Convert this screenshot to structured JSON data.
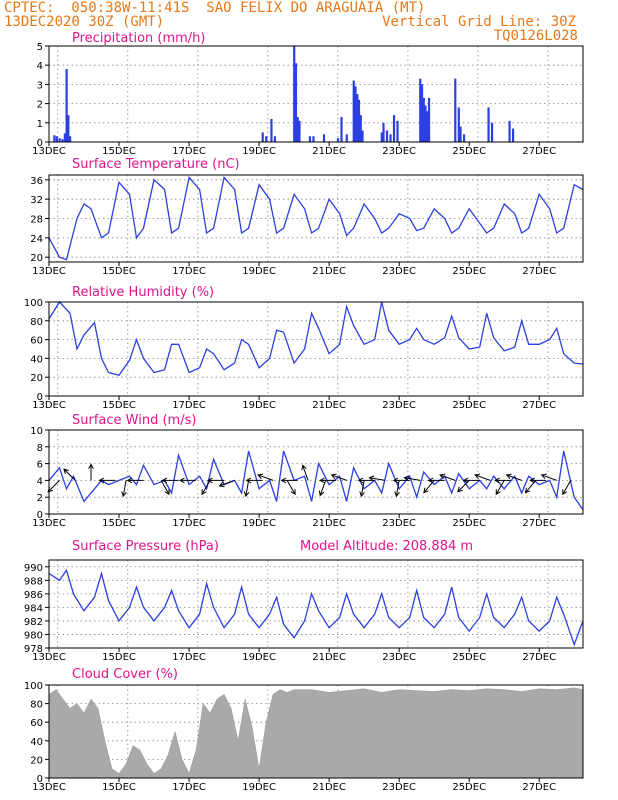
{
  "header": {
    "line1_left": "CPTEC:  050:38W-11:41S  SAO FELIX DO ARAGUAIA (MT)",
    "line2_left": "13DEC2020 30Z (GMT)",
    "line2_right": "Vertical Grid Line: 30Z",
    "line3_right": "TQ0126L028"
  },
  "colors": {
    "header": "#e87818",
    "title": "#e0148c",
    "series": "#2c3fe0",
    "cloud": "#a9a9a9"
  },
  "x_ticks": [
    "13DEC",
    "15DEC",
    "17DEC",
    "19DEC",
    "21DEC",
    "23DEC",
    "25DEC",
    "27DEC"
  ],
  "chart_data": [
    {
      "type": "bar",
      "title": "Precipitation (mm/h)",
      "ylim": [
        0,
        5
      ],
      "yticks": [
        0,
        1,
        2,
        3,
        4,
        5
      ],
      "x_range_days": [
        13,
        28.25
      ],
      "x": [
        13.15,
        13.22,
        13.3,
        13.38,
        13.45,
        13.5,
        13.55,
        13.6,
        19.1,
        19.2,
        19.35,
        19.45,
        20.0,
        20.05,
        20.1,
        20.15,
        20.45,
        20.55,
        20.85,
        21.25,
        21.35,
        21.5,
        21.7,
        21.75,
        21.8,
        21.85,
        21.9,
        21.95,
        22.5,
        22.55,
        22.65,
        22.75,
        22.85,
        22.95,
        23.6,
        23.65,
        23.7,
        23.75,
        23.8,
        23.85,
        24.6,
        24.7,
        24.75,
        24.85,
        25.55,
        25.65,
        26.15,
        26.25
      ],
      "values": [
        0.35,
        0.3,
        0.2,
        0.15,
        0.45,
        3.8,
        1.4,
        0.3,
        0.5,
        0.3,
        1.2,
        0.3,
        5.0,
        4.1,
        1.3,
        1.1,
        0.3,
        0.3,
        0.4,
        0.2,
        1.3,
        0.4,
        3.2,
        2.9,
        2.5,
        2.2,
        1.4,
        0.6,
        0.5,
        1.0,
        0.6,
        0.4,
        1.4,
        1.1,
        3.3,
        3.0,
        2.3,
        1.9,
        1.6,
        2.3,
        3.3,
        1.8,
        0.8,
        0.4,
        1.8,
        1.0,
        1.1,
        0.7
      ]
    },
    {
      "type": "line",
      "title": "Surface Temperature (nC)",
      "ylim": [
        19,
        37
      ],
      "yticks": [
        20,
        24,
        28,
        32,
        36
      ],
      "x_range_days": [
        13,
        28.25
      ],
      "x": [
        13.0,
        13.3,
        13.5,
        13.8,
        14.0,
        14.2,
        14.5,
        14.7,
        15.0,
        15.3,
        15.5,
        15.7,
        16.0,
        16.3,
        16.5,
        16.7,
        17.0,
        17.3,
        17.5,
        17.7,
        18.0,
        18.3,
        18.5,
        18.7,
        19.0,
        19.3,
        19.5,
        19.7,
        20.0,
        20.3,
        20.5,
        20.7,
        21.0,
        21.3,
        21.5,
        21.7,
        22.0,
        22.3,
        22.5,
        22.7,
        23.0,
        23.3,
        23.5,
        23.7,
        24.0,
        24.3,
        24.5,
        24.7,
        25.0,
        25.3,
        25.5,
        25.7,
        26.0,
        26.3,
        26.5,
        26.7,
        27.0,
        27.3,
        27.5,
        27.7,
        28.0,
        28.25
      ],
      "values": [
        24,
        20,
        19.5,
        28,
        31,
        30,
        24,
        25,
        35.5,
        33,
        24,
        26,
        36,
        34,
        25,
        26,
        36.5,
        34,
        25,
        26,
        36.5,
        34,
        25,
        26,
        35,
        32,
        25,
        26,
        33,
        30,
        25,
        26,
        32,
        29,
        24.5,
        26,
        31,
        28,
        25,
        26,
        29,
        28,
        25.5,
        26,
        30,
        28,
        25,
        26,
        30,
        27,
        25,
        26,
        31,
        29,
        25,
        26,
        33,
        30,
        25,
        26,
        35,
        34
      ]
    },
    {
      "type": "line",
      "title": "Relative Humidity (%)",
      "ylim": [
        0,
        100
      ],
      "yticks": [
        0,
        20,
        40,
        60,
        80,
        100
      ],
      "x_range_days": [
        13,
        28.25
      ],
      "x": [
        13.0,
        13.3,
        13.6,
        13.8,
        14.0,
        14.3,
        14.5,
        14.7,
        15.0,
        15.3,
        15.5,
        15.7,
        16.0,
        16.3,
        16.5,
        16.7,
        17.0,
        17.3,
        17.5,
        17.7,
        18.0,
        18.3,
        18.5,
        18.7,
        19.0,
        19.3,
        19.5,
        19.7,
        20.0,
        20.3,
        20.5,
        20.7,
        21.0,
        21.3,
        21.5,
        21.7,
        22.0,
        22.3,
        22.5,
        22.7,
        23.0,
        23.3,
        23.5,
        23.7,
        24.0,
        24.3,
        24.5,
        24.7,
        25.0,
        25.3,
        25.5,
        25.7,
        26.0,
        26.3,
        26.5,
        26.7,
        27.0,
        27.3,
        27.5,
        27.7,
        28.0,
        28.25
      ],
      "values": [
        82,
        100,
        88,
        50,
        65,
        78,
        40,
        25,
        22,
        38,
        60,
        40,
        25,
        28,
        55,
        55,
        25,
        30,
        50,
        45,
        28,
        35,
        60,
        55,
        30,
        40,
        70,
        68,
        35,
        50,
        88,
        72,
        45,
        55,
        95,
        75,
        55,
        60,
        100,
        70,
        55,
        60,
        72,
        60,
        55,
        62,
        85,
        62,
        50,
        52,
        88,
        62,
        48,
        52,
        80,
        55,
        55,
        60,
        72,
        45,
        35,
        34
      ]
    },
    {
      "type": "line",
      "title": "Surface Wind (m/s)",
      "ylim": [
        0,
        10
      ],
      "yticks": [
        0,
        2,
        4,
        6,
        8,
        10
      ],
      "x_range_days": [
        13,
        28.25
      ],
      "x": [
        13.0,
        13.3,
        13.5,
        13.7,
        14.0,
        14.3,
        14.5,
        14.7,
        15.0,
        15.3,
        15.5,
        15.7,
        16.0,
        16.3,
        16.5,
        16.7,
        17.0,
        17.3,
        17.5,
        17.7,
        18.0,
        18.3,
        18.5,
        18.7,
        19.0,
        19.3,
        19.5,
        19.7,
        20.0,
        20.3,
        20.5,
        20.7,
        21.0,
        21.3,
        21.5,
        21.7,
        22.0,
        22.3,
        22.5,
        22.7,
        23.0,
        23.3,
        23.5,
        23.7,
        24.0,
        24.3,
        24.5,
        24.7,
        25.0,
        25.3,
        25.5,
        25.7,
        26.0,
        26.3,
        26.5,
        26.7,
        27.0,
        27.3,
        27.5,
        27.7,
        28.0,
        28.25
      ],
      "values": [
        4,
        5.5,
        3,
        4.5,
        1.5,
        3,
        4,
        3.5,
        4,
        4.5,
        3.5,
        5.8,
        3.5,
        4,
        2.5,
        7,
        3.5,
        4.5,
        3,
        6.5,
        3.5,
        4,
        2.5,
        7.5,
        3,
        4,
        1.5,
        7.5,
        4,
        4.5,
        1.5,
        6,
        3.5,
        4.5,
        1.5,
        5.5,
        3,
        4,
        2.5,
        6,
        3,
        4.5,
        2,
        5,
        3.5,
        4.5,
        2.5,
        4.8,
        3,
        4,
        3,
        4.5,
        3,
        4.5,
        2.5,
        4.5,
        3.5,
        4,
        2,
        7.5,
        2,
        0.5
      ],
      "arrows": [
        {
          "x": 13.3,
          "deg": 135
        },
        {
          "x": 13.75,
          "deg": 225
        },
        {
          "x": 14.2,
          "deg": 270
        },
        {
          "x": 14.9,
          "deg": 180
        },
        {
          "x": 15.2,
          "deg": 100
        },
        {
          "x": 15.7,
          "deg": 180
        },
        {
          "x": 16.2,
          "deg": 60
        },
        {
          "x": 16.7,
          "deg": 180
        },
        {
          "x": 17.2,
          "deg": 180
        },
        {
          "x": 17.6,
          "deg": 120
        },
        {
          "x": 18.0,
          "deg": 180
        },
        {
          "x": 18.3,
          "deg": 160
        },
        {
          "x": 18.7,
          "deg": 100
        },
        {
          "x": 19.1,
          "deg": 180
        },
        {
          "x": 19.4,
          "deg": 200
        },
        {
          "x": 19.8,
          "deg": 60
        },
        {
          "x": 20.1,
          "deg": 180
        },
        {
          "x": 20.4,
          "deg": 250
        },
        {
          "x": 20.9,
          "deg": 110
        },
        {
          "x": 21.2,
          "deg": 180
        },
        {
          "x": 21.5,
          "deg": 200
        },
        {
          "x": 22.0,
          "deg": 100
        },
        {
          "x": 22.3,
          "deg": 180
        },
        {
          "x": 22.6,
          "deg": 190
        },
        {
          "x": 23.0,
          "deg": 100
        },
        {
          "x": 23.3,
          "deg": 180
        },
        {
          "x": 23.6,
          "deg": 190
        },
        {
          "x": 24.0,
          "deg": 130
        },
        {
          "x": 24.3,
          "deg": 180
        },
        {
          "x": 24.6,
          "deg": 200
        },
        {
          "x": 25.0,
          "deg": 135
        },
        {
          "x": 25.3,
          "deg": 180
        },
        {
          "x": 25.6,
          "deg": 200
        },
        {
          "x": 26.0,
          "deg": 120
        },
        {
          "x": 26.2,
          "deg": 180
        },
        {
          "x": 26.5,
          "deg": 200
        },
        {
          "x": 26.9,
          "deg": 130
        },
        {
          "x": 27.2,
          "deg": 180
        },
        {
          "x": 27.5,
          "deg": 200
        },
        {
          "x": 27.9,
          "deg": 120
        }
      ]
    },
    {
      "type": "line",
      "title": "Surface Pressure (hPa)",
      "annotation": "Model Altitude: 208.884 m",
      "ylim": [
        978,
        991
      ],
      "yticks": [
        978,
        980,
        982,
        984,
        986,
        988,
        990
      ],
      "x_range_days": [
        13,
        28.25
      ],
      "x": [
        13.0,
        13.3,
        13.5,
        13.7,
        14.0,
        14.3,
        14.5,
        14.7,
        15.0,
        15.3,
        15.5,
        15.7,
        16.0,
        16.3,
        16.5,
        16.7,
        17.0,
        17.3,
        17.5,
        17.7,
        18.0,
        18.3,
        18.5,
        18.7,
        19.0,
        19.3,
        19.5,
        19.7,
        20.0,
        20.3,
        20.5,
        20.7,
        21.0,
        21.3,
        21.5,
        21.7,
        22.0,
        22.3,
        22.5,
        22.7,
        23.0,
        23.3,
        23.5,
        23.7,
        24.0,
        24.3,
        24.5,
        24.7,
        25.0,
        25.3,
        25.5,
        25.7,
        26.0,
        26.3,
        26.5,
        26.7,
        27.0,
        27.3,
        27.5,
        27.7,
        28.0,
        28.25
      ],
      "values": [
        989,
        988,
        989.5,
        986,
        983.5,
        985.5,
        989,
        985,
        982,
        984,
        987,
        984,
        982,
        984,
        986.5,
        983.5,
        981,
        983,
        987.5,
        984,
        981,
        983,
        987,
        983,
        981,
        983,
        985.5,
        981.5,
        979.5,
        982,
        986,
        983.5,
        981,
        982.5,
        986,
        983,
        981,
        983,
        986,
        982.5,
        981,
        982.5,
        986.5,
        982.5,
        981,
        983,
        987,
        982.5,
        980.5,
        982.5,
        986,
        982.5,
        981,
        983,
        985.5,
        982,
        980.5,
        982,
        985.5,
        983,
        978.5,
        982
      ]
    },
    {
      "type": "area",
      "title": "Cloud Cover (%)",
      "ylim": [
        0,
        100
      ],
      "yticks": [
        0,
        20,
        40,
        60,
        80,
        100
      ],
      "x_range_days": [
        13,
        28.25
      ],
      "x": [
        13.0,
        13.2,
        13.4,
        13.6,
        13.8,
        14.0,
        14.2,
        14.4,
        14.6,
        14.8,
        15.0,
        15.2,
        15.4,
        15.6,
        15.8,
        16.0,
        16.2,
        16.4,
        16.6,
        16.8,
        17.0,
        17.2,
        17.4,
        17.6,
        17.8,
        18.0,
        18.2,
        18.4,
        18.6,
        18.8,
        19.0,
        19.2,
        19.4,
        19.6,
        19.8,
        20.0,
        20.5,
        21.0,
        21.5,
        22.0,
        22.5,
        23.0,
        23.5,
        24.0,
        24.5,
        25.0,
        25.5,
        26.0,
        26.5,
        27.0,
        27.5,
        28.0,
        28.25
      ],
      "values": [
        90,
        95,
        85,
        75,
        80,
        70,
        85,
        75,
        40,
        10,
        5,
        15,
        35,
        30,
        15,
        5,
        10,
        25,
        50,
        20,
        5,
        30,
        80,
        70,
        85,
        90,
        75,
        40,
        85,
        55,
        10,
        60,
        90,
        95,
        92,
        95,
        95,
        92,
        94,
        96,
        92,
        95,
        94,
        93,
        95,
        94,
        96,
        95,
        93,
        96,
        95,
        97,
        95
      ]
    }
  ]
}
